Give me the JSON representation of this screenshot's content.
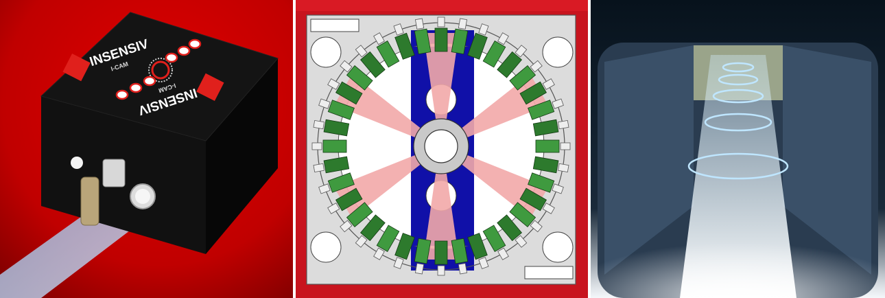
{
  "panels": [
    {
      "id": "camera-unit-photo",
      "brand": {
        "wordmark": "INSENSIV",
        "model": "I-CAM"
      }
    },
    {
      "id": "sensor-ring-cad-drawing"
    },
    {
      "id": "bottle-inspection-tunnel-photo"
    }
  ],
  "colors": {
    "red_backdrop": "#d40000",
    "housing_black": "#0b0b0b",
    "logo_red": "#e0201c",
    "cad_plate": "#dcdcdc",
    "cad_blue": "#1010a8",
    "cad_green": "#2d7a2d",
    "cad_beam": "#f2a8a8",
    "cad_frame_red": "#c8141e",
    "tunnel_dark": "#0e1a26",
    "tunnel_light": "#e8f2f8"
  }
}
